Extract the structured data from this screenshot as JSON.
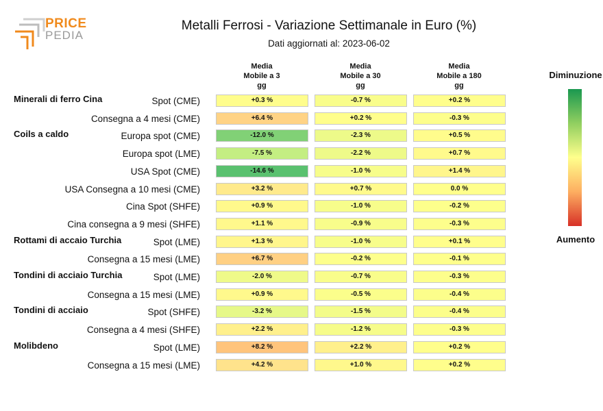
{
  "logo": {
    "text_1": "PRICE",
    "text_2": "PEDIA"
  },
  "chart_data": {
    "type": "table",
    "title": "Metalli Ferrosi - Variazione Settimanale in Euro (%)",
    "subtitle": "Dati aggiornati al: 2023-06-02",
    "columns": [
      [
        "Media",
        "Mobile a 3",
        "gg"
      ],
      [
        "Media",
        "Mobile a 30",
        "gg"
      ],
      [
        "Media",
        "Mobile a 180",
        "gg"
      ]
    ],
    "legend": {
      "top": "Diminuzione",
      "bottom": "Aumento"
    },
    "groups": [
      {
        "name": "Minerali di ferro Cina",
        "rows": [
          {
            "label": "Spot (CME)",
            "values": [
              0.3,
              -0.7,
              0.2
            ]
          },
          {
            "label": "Consegna a 4 mesi (CME)",
            "values": [
              6.4,
              0.2,
              -0.3
            ]
          }
        ]
      },
      {
        "name": "Coils a caldo",
        "rows": [
          {
            "label": "Europa spot (CME)",
            "values": [
              -12.0,
              -2.3,
              0.5
            ]
          },
          {
            "label": "Europa spot (LME)",
            "values": [
              -7.5,
              -2.2,
              0.7
            ]
          },
          {
            "label": "USA Spot (CME)",
            "values": [
              -14.6,
              -1.0,
              1.4
            ]
          },
          {
            "label": "USA Consegna a 10 mesi (CME)",
            "values": [
              3.2,
              0.7,
              0.0
            ]
          },
          {
            "label": "Cina Spot (SHFE)",
            "values": [
              0.9,
              -1.0,
              -0.2
            ]
          },
          {
            "label": "Cina consegna a 9 mesi (SHFE)",
            "values": [
              1.1,
              -0.9,
              -0.3
            ]
          }
        ]
      },
      {
        "name": "Rottami di accaio Turchia",
        "rows": [
          {
            "label": "Spot (LME)",
            "values": [
              1.3,
              -1.0,
              0.1
            ]
          },
          {
            "label": "Consegna a 15 mesi (LME)",
            "values": [
              6.7,
              -0.2,
              -0.1
            ]
          }
        ]
      },
      {
        "name": "Tondini di acciaio Turchia",
        "rows": [
          {
            "label": "Spot (LME)",
            "values": [
              -2.0,
              -0.7,
              -0.3
            ]
          },
          {
            "label": "Consegna a 15 mesi (LME)",
            "values": [
              0.9,
              -0.5,
              -0.4
            ]
          }
        ]
      },
      {
        "name": "Tondini di acciaio",
        "rows": [
          {
            "label": "Spot (SHFE)",
            "values": [
              -3.2,
              -1.5,
              -0.4
            ]
          },
          {
            "label": "Consegna a 4 mesi (SHFE)",
            "values": [
              2.2,
              -1.2,
              -0.3
            ]
          }
        ]
      },
      {
        "name": "Molibdeno",
        "rows": [
          {
            "label": "Spot (LME)",
            "values": [
              8.2,
              2.2,
              0.2
            ]
          },
          {
            "label": "Consegna a 15 mesi (LME)",
            "values": [
              4.2,
              1.0,
              0.2
            ]
          }
        ]
      }
    ]
  }
}
